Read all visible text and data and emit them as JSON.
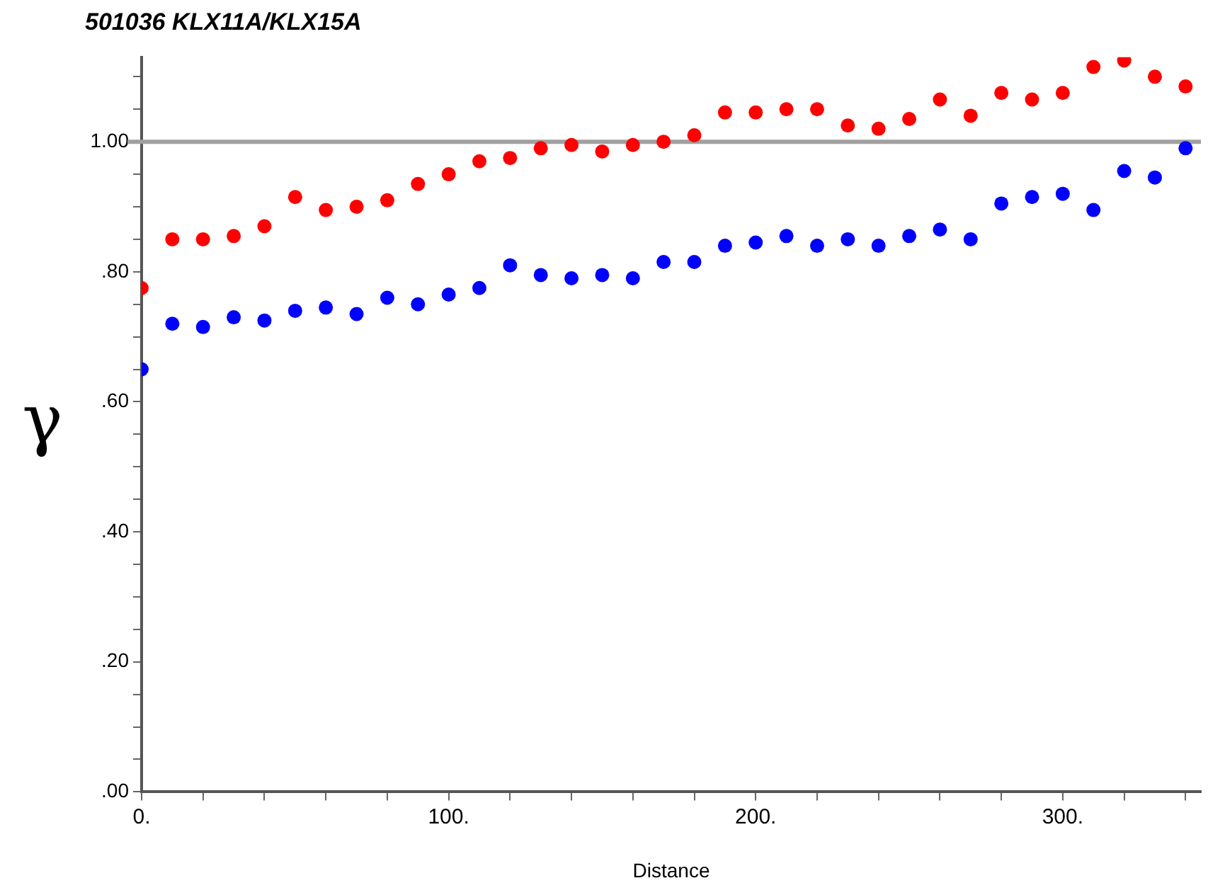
{
  "chart_data": {
    "type": "scatter",
    "title": "501036 KLX11A/KLX15A",
    "xlabel": "Distance",
    "ylabel": "γ",
    "x": [
      0,
      10,
      20,
      30,
      40,
      50,
      60,
      70,
      80,
      90,
      100,
      110,
      120,
      130,
      140,
      150,
      160,
      170,
      180,
      190,
      200,
      210,
      220,
      230,
      240,
      250,
      260,
      270,
      280,
      290,
      300,
      310,
      320,
      330,
      340
    ],
    "series": [
      {
        "color": "#ff0000",
        "values": [
          0.775,
          0.85,
          0.85,
          0.855,
          0.87,
          0.915,
          0.895,
          0.9,
          0.91,
          0.935,
          0.95,
          0.97,
          0.975,
          0.99,
          0.995,
          0.985,
          0.995,
          1.0,
          1.01,
          1.045,
          1.045,
          1.05,
          1.05,
          1.025,
          1.02,
          1.035,
          1.065,
          1.04,
          1.075,
          1.065,
          1.075,
          1.115,
          1.125,
          1.1,
          1.085
        ]
      },
      {
        "color": "#0000ff",
        "values": [
          0.65,
          0.72,
          0.715,
          0.73,
          0.725,
          0.74,
          0.745,
          0.735,
          0.76,
          0.75,
          0.765,
          0.775,
          0.81,
          0.795,
          0.79,
          0.795,
          0.79,
          0.815,
          0.815,
          0.84,
          0.845,
          0.855,
          0.84,
          0.85,
          0.84,
          0.855,
          0.865,
          0.85,
          0.905,
          0.915,
          0.92,
          0.895,
          0.955,
          0.945,
          0.99
        ]
      }
    ],
    "xlim": [
      0,
      345
    ],
    "xticks": [
      {
        "value": 0,
        "label": "0."
      },
      {
        "value": 20,
        "label": null
      },
      {
        "value": 40,
        "label": null
      },
      {
        "value": 60,
        "label": null
      },
      {
        "value": 80,
        "label": null
      },
      {
        "value": 100,
        "label": "100."
      },
      {
        "value": 120,
        "label": null
      },
      {
        "value": 140,
        "label": null
      },
      {
        "value": 160,
        "label": null
      },
      {
        "value": 180,
        "label": null
      },
      {
        "value": 200,
        "label": "200."
      },
      {
        "value": 220,
        "label": null
      },
      {
        "value": 240,
        "label": null
      },
      {
        "value": 260,
        "label": null
      },
      {
        "value": 280,
        "label": null
      },
      {
        "value": 300,
        "label": "300."
      },
      {
        "value": 320,
        "label": null
      },
      {
        "value": 340,
        "label": null
      }
    ],
    "ylim": [
      0,
      1.13
    ],
    "yticks": [
      {
        "value": 0,
        "label": ".00"
      },
      {
        "value": 0.05,
        "label": null
      },
      {
        "value": 0.1,
        "label": null
      },
      {
        "value": 0.15,
        "label": null
      },
      {
        "value": 0.2,
        "label": ".20"
      },
      {
        "value": 0.25,
        "label": null
      },
      {
        "value": 0.3,
        "label": null
      },
      {
        "value": 0.35,
        "label": null
      },
      {
        "value": 0.4,
        "label": ".40"
      },
      {
        "value": 0.45,
        "label": null
      },
      {
        "value": 0.5,
        "label": null
      },
      {
        "value": 0.55,
        "label": null
      },
      {
        "value": 0.6,
        "label": ".60"
      },
      {
        "value": 0.65,
        "label": null
      },
      {
        "value": 0.7,
        "label": null
      },
      {
        "value": 0.75,
        "label": null
      },
      {
        "value": 0.8,
        "label": ".80"
      },
      {
        "value": 0.85,
        "label": null
      },
      {
        "value": 0.9,
        "label": null
      },
      {
        "value": 0.95,
        "label": null
      },
      {
        "value": 1.0,
        "label": "1.00"
      },
      {
        "value": 1.05,
        "label": null
      },
      {
        "value": 1.1,
        "label": null
      }
    ],
    "ref_lines": [
      {
        "axis": "y",
        "value": 1.0,
        "color": "#a0a0a0"
      }
    ],
    "marker": "circle",
    "grid": false,
    "legend": false
  }
}
